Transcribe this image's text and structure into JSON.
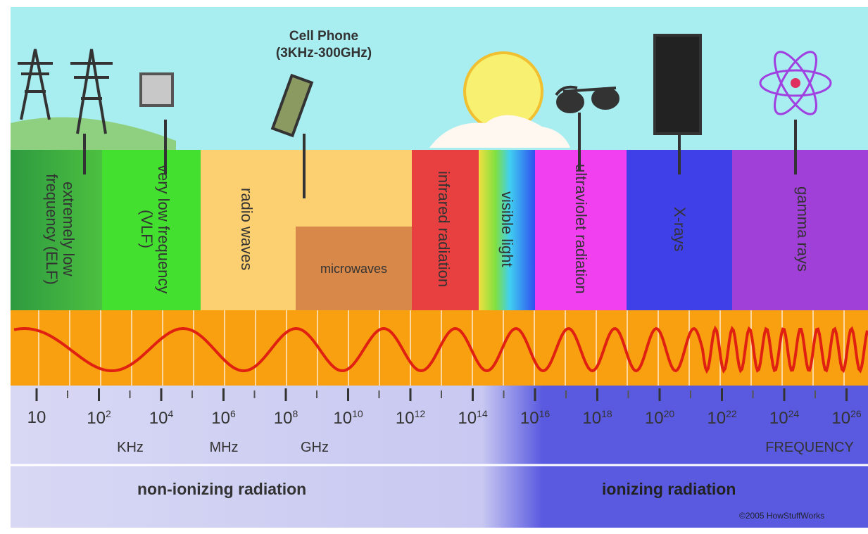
{
  "callout": {
    "title": "Cell Phone",
    "range": "(3KHz-300GHz)"
  },
  "bands": [
    "extremely low frequency (ELF)",
    "very low frequency (VLF)",
    "radio waves",
    "microwaves",
    "infrared radiation",
    "visible light",
    "ultraviolet radiation",
    "X-rays",
    "gamma rays"
  ],
  "ticks": [
    {
      "base": "10"
    },
    {
      "base": "10",
      "exponent": "2"
    },
    {
      "base": "10",
      "exponent": "4"
    },
    {
      "base": "10",
      "exponent": "6"
    },
    {
      "base": "10",
      "exponent": "8"
    },
    {
      "base": "10",
      "exponent": "10"
    },
    {
      "base": "10",
      "exponent": "12"
    },
    {
      "base": "10",
      "exponent": "14"
    },
    {
      "base": "10",
      "exponent": "16"
    },
    {
      "base": "10",
      "exponent": "18"
    },
    {
      "base": "10",
      "exponent": "20"
    },
    {
      "base": "10",
      "exponent": "22"
    },
    {
      "base": "10",
      "exponent": "24"
    },
    {
      "base": "10",
      "exponent": "26"
    }
  ],
  "units": [
    "KHz",
    "MHz",
    "GHz"
  ],
  "axis_label": "FREQUENCY",
  "regions": [
    "non-ionizing radiation",
    "ionizing radiation"
  ],
  "credit": "©2005 HowStuffWorks"
}
